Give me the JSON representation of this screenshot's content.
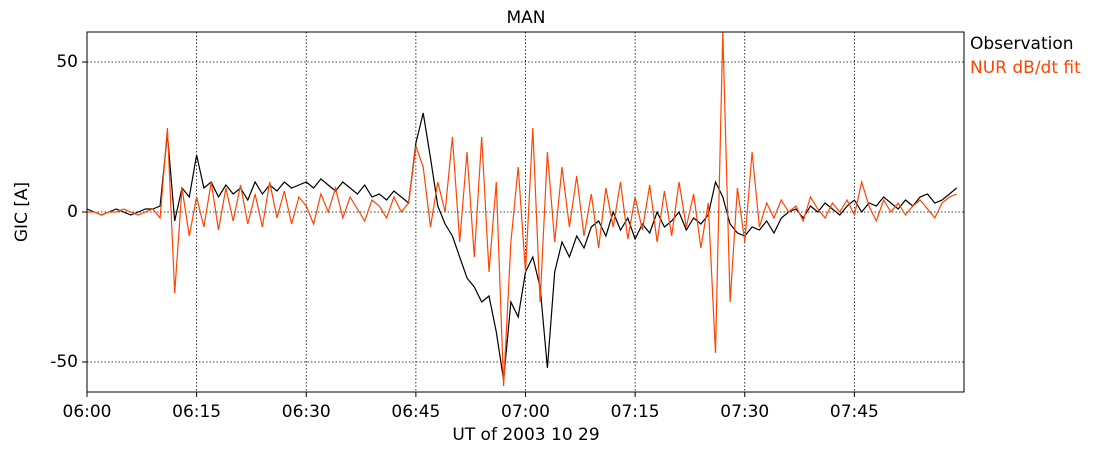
{
  "chart_data": {
    "type": "line",
    "title": "MAN",
    "xlabel": "UT of 2003 10 29",
    "ylabel": "GIC [A]",
    "x": [
      "06:00",
      "06:01",
      "06:02",
      "06:03",
      "06:04",
      "06:05",
      "06:06",
      "06:07",
      "06:08",
      "06:09",
      "06:10",
      "06:11",
      "06:12",
      "06:13",
      "06:14",
      "06:15",
      "06:16",
      "06:17",
      "06:18",
      "06:19",
      "06:20",
      "06:21",
      "06:22",
      "06:23",
      "06:24",
      "06:25",
      "06:26",
      "06:27",
      "06:28",
      "06:29",
      "06:30",
      "06:31",
      "06:32",
      "06:33",
      "06:34",
      "06:35",
      "06:36",
      "06:37",
      "06:38",
      "06:39",
      "06:40",
      "06:41",
      "06:42",
      "06:43",
      "06:44",
      "06:45",
      "06:46",
      "06:47",
      "06:48",
      "06:49",
      "06:50",
      "06:51",
      "06:52",
      "06:53",
      "06:54",
      "06:55",
      "06:56",
      "06:57",
      "06:58",
      "06:59",
      "07:00",
      "07:01",
      "07:02",
      "07:03",
      "07:04",
      "07:05",
      "07:06",
      "07:07",
      "07:08",
      "07:09",
      "07:10",
      "07:11",
      "07:12",
      "07:13",
      "07:14",
      "07:15",
      "07:16",
      "07:17",
      "07:18",
      "07:19",
      "07:20",
      "07:21",
      "07:22",
      "07:23",
      "07:24",
      "07:25",
      "07:26",
      "07:27",
      "07:28",
      "07:29",
      "07:30",
      "07:31",
      "07:32",
      "07:33",
      "07:34",
      "07:35",
      "07:36",
      "07:37",
      "07:38",
      "07:39",
      "07:40",
      "07:41",
      "07:42",
      "07:43",
      "07:44",
      "07:45",
      "07:46",
      "07:47",
      "07:48",
      "07:49",
      "07:50",
      "07:51",
      "07:52",
      "07:53",
      "07:54",
      "07:55",
      "07:56",
      "07:57",
      "07:58",
      "07:59"
    ],
    "series": [
      {
        "name": "Observation",
        "color": "#000000",
        "values": [
          1,
          0,
          -1,
          0,
          1,
          0,
          -1,
          0,
          1,
          1,
          2,
          26,
          -3,
          8,
          5,
          19,
          8,
          10,
          5,
          9,
          6,
          8,
          4,
          10,
          6,
          9,
          7,
          10,
          8,
          9,
          10,
          8,
          11,
          9,
          7,
          10,
          8,
          6,
          9,
          5,
          6,
          4,
          7,
          5,
          3,
          23,
          33,
          18,
          2,
          -4,
          -8,
          -15,
          -22,
          -25,
          -30,
          -28,
          -40,
          -56,
          -30,
          -35,
          -20,
          -15,
          -25,
          -52,
          -20,
          -10,
          -15,
          -8,
          -12,
          -5,
          -3,
          -8,
          0,
          -6,
          -2,
          -9,
          -4,
          -7,
          0,
          -5,
          -3,
          0,
          -6,
          -2,
          -4,
          -1,
          10,
          5,
          -4,
          -7,
          -8,
          -5,
          -6,
          -3,
          -7,
          -2,
          0,
          1,
          -2,
          2,
          0,
          3,
          1,
          -1,
          2,
          4,
          0,
          3,
          2,
          5,
          3,
          1,
          4,
          2,
          5,
          6,
          3,
          4,
          6,
          8
        ]
      },
      {
        "name": "NUR dB/dt fit",
        "color": "#ff4500",
        "values": [
          0,
          0,
          -1,
          0,
          0,
          1,
          0,
          -1,
          0,
          1,
          -2,
          28,
          -27,
          8,
          -8,
          5,
          -5,
          10,
          -6,
          8,
          -3,
          9,
          -4,
          6,
          -5,
          10,
          -2,
          7,
          -4,
          5,
          2,
          -4,
          6,
          0,
          8,
          -2,
          5,
          1,
          -3,
          4,
          2,
          -2,
          5,
          0,
          3,
          22,
          15,
          -5,
          10,
          0,
          25,
          -10,
          20,
          -15,
          25,
          -20,
          10,
          -58,
          -10,
          15,
          -20,
          28,
          -30,
          20,
          -10,
          15,
          -5,
          12,
          -8,
          6,
          -12,
          8,
          -5,
          10,
          -9,
          5,
          -6,
          9,
          -10,
          7,
          -8,
          10,
          -5,
          6,
          -12,
          3,
          -47,
          60,
          -30,
          8,
          -10,
          20,
          -5,
          3,
          -2,
          4,
          0,
          2,
          -3,
          5,
          1,
          -2,
          3,
          0,
          4,
          -1,
          10,
          2,
          -3,
          4,
          0,
          3,
          -1,
          2,
          4,
          1,
          -2,
          3,
          5,
          6
        ]
      }
    ],
    "xlim": [
      "06:00",
      "08:00"
    ],
    "xticks": [
      "06:00",
      "06:15",
      "06:30",
      "06:45",
      "07:00",
      "07:15",
      "07:30",
      "07:45"
    ],
    "ylim": [
      -60,
      60
    ],
    "yticks": [
      -50,
      0,
      50
    ],
    "grid": true,
    "legend": "outside right"
  }
}
